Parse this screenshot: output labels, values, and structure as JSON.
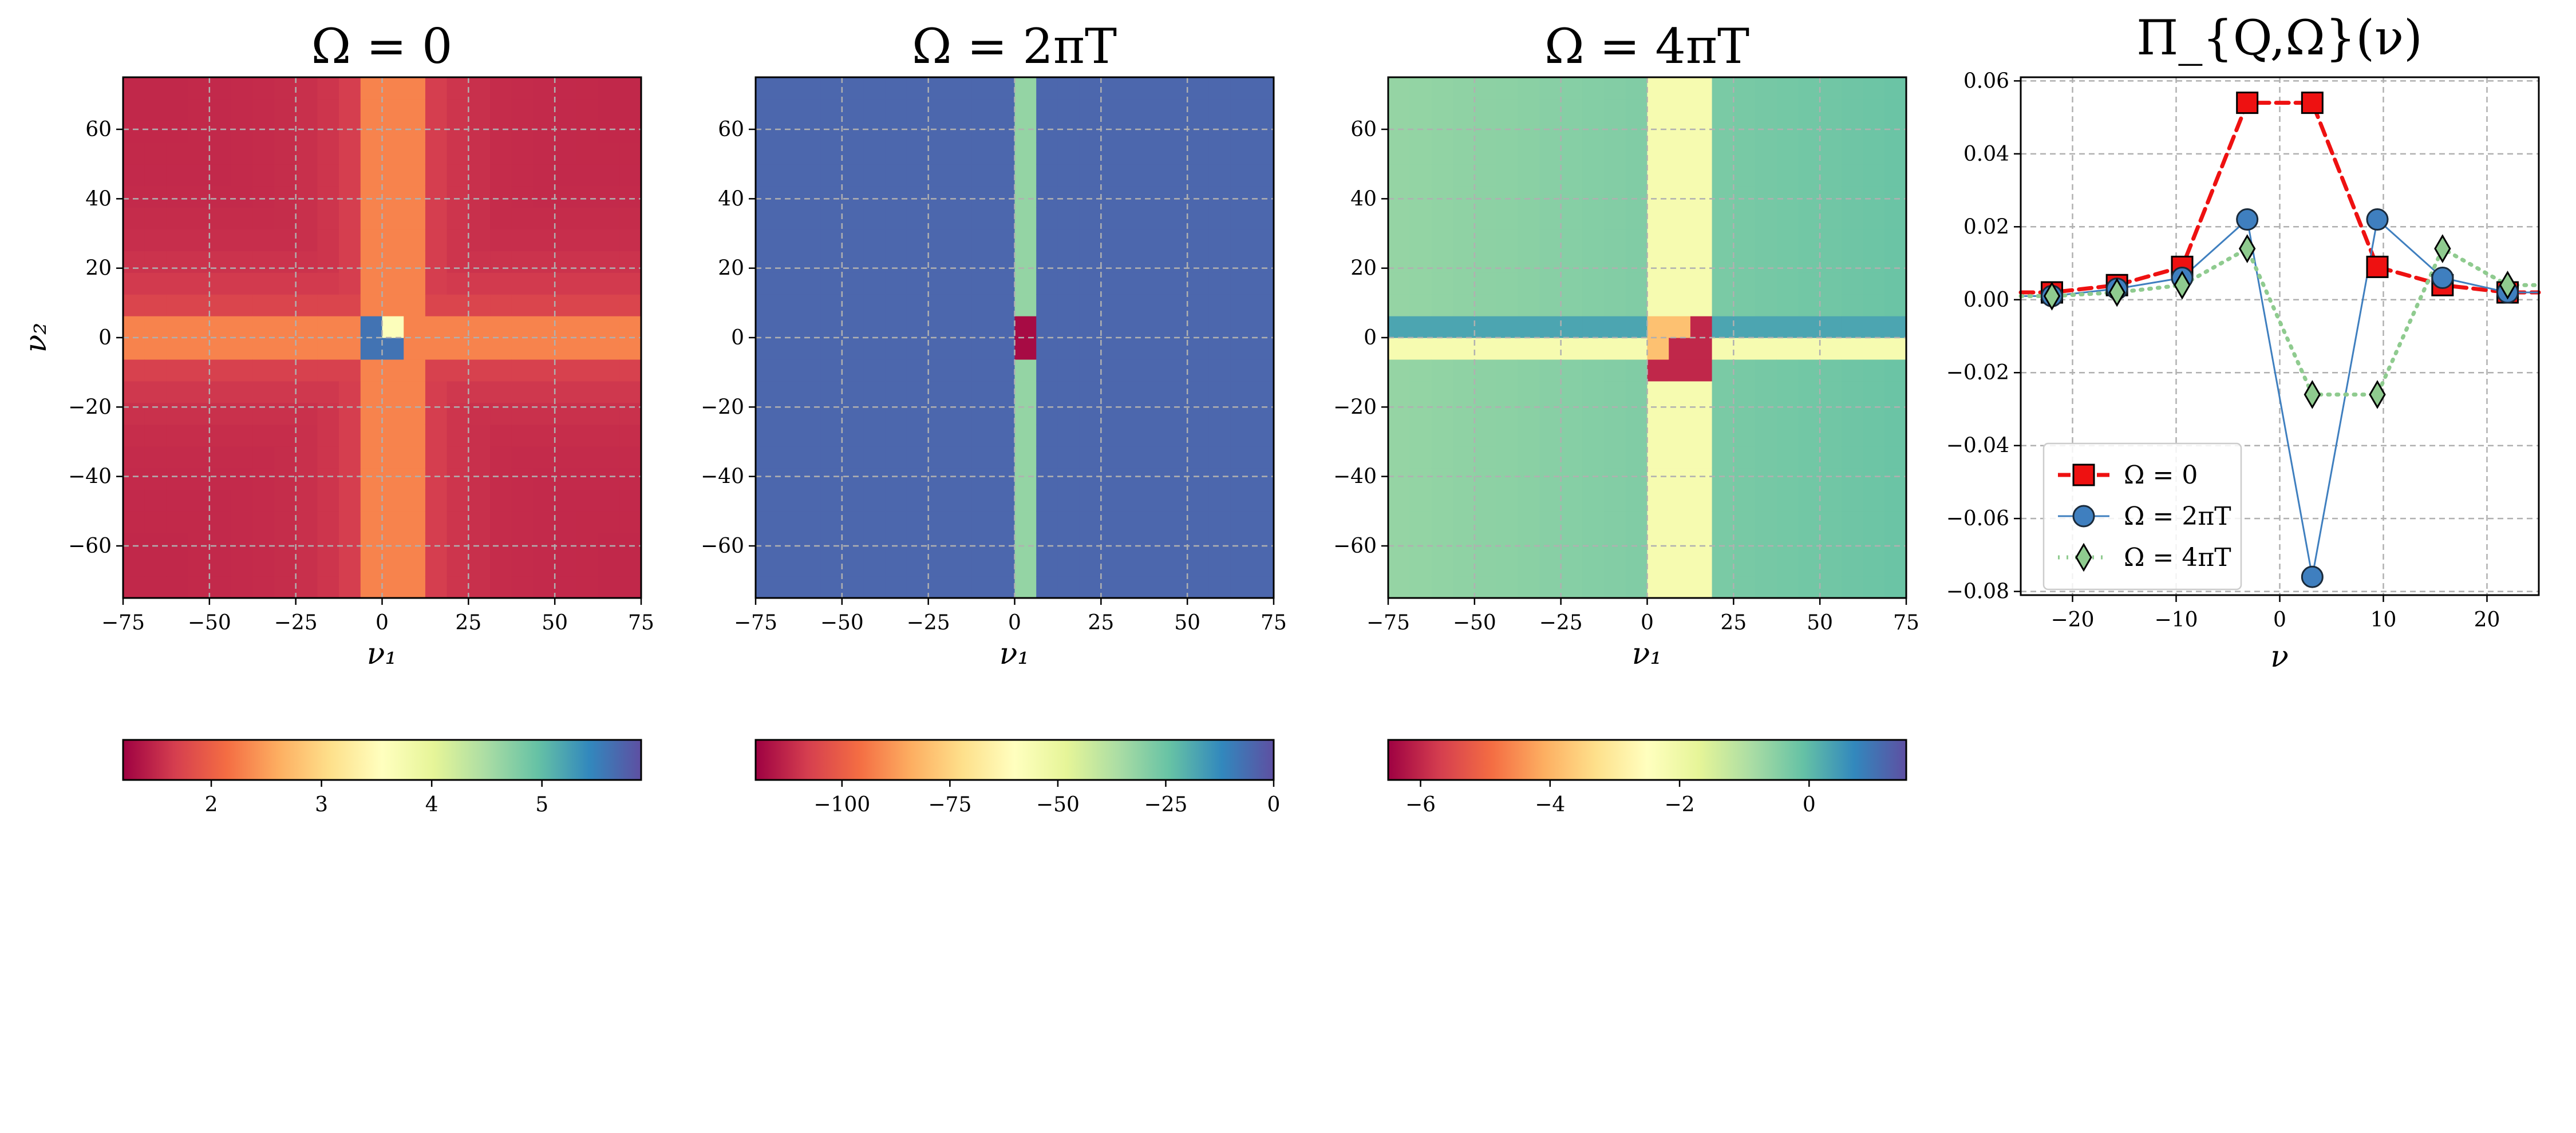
{
  "chart_data": [
    {
      "type": "heatmap",
      "title": "Ω = 0",
      "xlabel": "ν₁",
      "ylabel": "ν₂",
      "xlim": [
        -75,
        75
      ],
      "ylim": [
        -75,
        75
      ],
      "xticks": [
        "−75",
        "−50",
        "−25",
        "0",
        "25",
        "50",
        "75"
      ],
      "yticks": [
        "60",
        "40",
        "20",
        "0",
        "−20",
        "−40",
        "−60"
      ],
      "grid": true,
      "colormap": "Spectral",
      "background_value": 1.5,
      "band_value": 2.3,
      "colorbar": {
        "range": [
          1.2,
          5.9
        ],
        "ticks": [
          "2",
          "3",
          "4",
          "5"
        ],
        "tick_values": [
          2,
          3,
          4,
          5
        ]
      }
    },
    {
      "type": "heatmap",
      "title": "Ω = 2πT",
      "xlabel": "ν₁",
      "ylabel": "",
      "xlim": [
        -75,
        75
      ],
      "ylim": [
        -75,
        75
      ],
      "xticks": [
        "−75",
        "−50",
        "−25",
        "0",
        "25",
        "50",
        "75"
      ],
      "yticks": [
        "60",
        "40",
        "20",
        "0",
        "−20",
        "−40",
        "−60"
      ],
      "grid": true,
      "colormap": "Spectral",
      "background_value": -5,
      "band_value": -32,
      "colorbar": {
        "range": [
          -120,
          0
        ],
        "ticks": [
          "−100",
          "−75",
          "−50",
          "−25",
          "0"
        ],
        "tick_values": [
          -100,
          -75,
          -50,
          -25,
          0
        ]
      }
    },
    {
      "type": "heatmap",
      "title": "Ω = 4πT",
      "xlabel": "ν₁",
      "ylabel": "",
      "xlim": [
        -75,
        75
      ],
      "ylim": [
        -75,
        75
      ],
      "xticks": [
        "−75",
        "−50",
        "−25",
        "0",
        "25",
        "50",
        "75"
      ],
      "yticks": [
        "60",
        "40",
        "20",
        "0",
        "−20",
        "−40",
        "−60"
      ],
      "grid": true,
      "colormap": "Spectral",
      "background_value": -0.4,
      "band_value": -2.2,
      "colorbar": {
        "range": [
          -6.5,
          1.5
        ],
        "ticks": [
          "−6",
          "−4",
          "−2",
          "0"
        ],
        "tick_values": [
          -6,
          -4,
          -2,
          0
        ]
      }
    },
    {
      "type": "line",
      "title": "Π_{Q,Ω}(ν)",
      "xlabel": "ν",
      "ylabel": "",
      "xlim": [
        -25,
        25
      ],
      "ylim": [
        -0.081,
        0.061
      ],
      "xticks": [
        "−20",
        "−10",
        "0",
        "10",
        "20"
      ],
      "yticks": [
        "0.06",
        "0.04",
        "0.02",
        "0.00",
        "−0.02",
        "−0.04",
        "−0.06",
        "−0.08"
      ],
      "grid": true,
      "legend": "lower-left",
      "x": [
        -21.99,
        -15.71,
        -9.42,
        -3.14,
        3.14,
        9.42,
        15.71,
        21.99
      ],
      "series": [
        {
          "name": "Ω = 0",
          "color": "#ee1111",
          "marker": "square",
          "values": [
            0.002,
            0.004,
            0.009,
            0.054,
            0.054,
            0.009,
            0.004,
            0.002
          ]
        },
        {
          "name": "Ω = 2πT",
          "color": "#3f7fbf",
          "marker": "circle",
          "values": [
            0.001,
            0.003,
            0.006,
            0.022,
            -0.076,
            0.022,
            0.006,
            0.002
          ]
        },
        {
          "name": "Ω = 4πT",
          "color": "#8fcb8f",
          "marker": "diamond",
          "values": [
            0.001,
            0.002,
            0.004,
            0.014,
            -0.026,
            -0.026,
            0.014,
            0.004
          ]
        }
      ]
    }
  ]
}
